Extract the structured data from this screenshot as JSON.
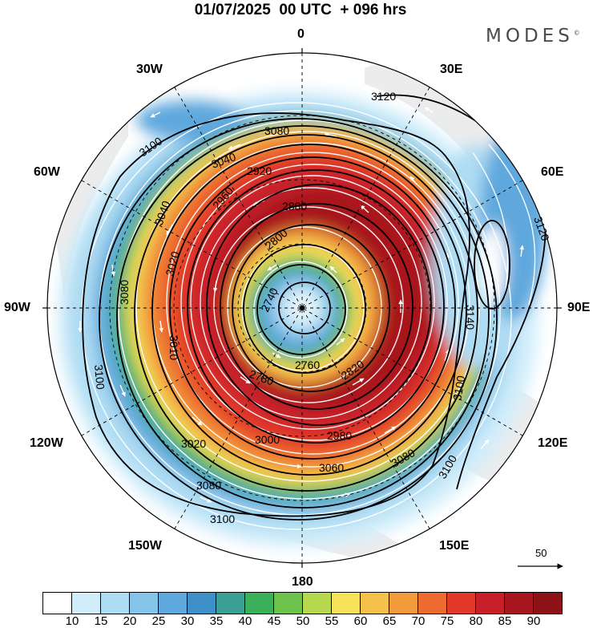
{
  "title": "01/07/2025  00 UTC  + 096 hrs",
  "brand": {
    "text": "MODES",
    "mark": "©"
  },
  "lon_labels": {
    "n": "0",
    "ne": "30E",
    "e1": "60E",
    "e": "90E",
    "se1": "120E",
    "se2": "150E",
    "s": "180",
    "sw2": "150W",
    "sw1": "120W",
    "w": "90W",
    "nw1": "60W",
    "nw2": "30W"
  },
  "contours": {
    "c3120a": "3120",
    "c3120b": "3120",
    "c3100a": "3100",
    "c3100b": "3100",
    "c3100c": "3100",
    "c3100d": "3100",
    "c3100e": "3100",
    "c3080a": "3080",
    "c3080b": "3080",
    "c3080c": "3080",
    "c3080d": "3080",
    "c3060": "3060",
    "c3040a": "3040",
    "c3040b": "3040",
    "c3020a": "3020",
    "c3020b": "3020",
    "c3000": "3000",
    "c2980": "2980",
    "c2960": "2960",
    "c2920": "2920",
    "c2880": "2880",
    "c2800": "2800",
    "c2820": "2820",
    "c2780": "2780",
    "c2760": "2760",
    "c2740": "2740",
    "c3010": "3010",
    "c3140": "3140"
  },
  "reference_vector": {
    "value": "50"
  },
  "colorbar": {
    "colors": [
      "#ffffff",
      "#d2eefb",
      "#aedcf3",
      "#85c5ea",
      "#5ea8dd",
      "#3f8fc9",
      "#3aa093",
      "#3bb05a",
      "#6cc24a",
      "#b6d84e",
      "#f6e35a",
      "#f6c14a",
      "#f29c3c",
      "#ec6b2e",
      "#e2392a",
      "#c8202a",
      "#a8161f",
      "#8c1218"
    ],
    "ticks": [
      "10",
      "15",
      "20",
      "25",
      "30",
      "35",
      "40",
      "45",
      "50",
      "55",
      "60",
      "65",
      "70",
      "75",
      "80",
      "85",
      "90"
    ]
  }
}
